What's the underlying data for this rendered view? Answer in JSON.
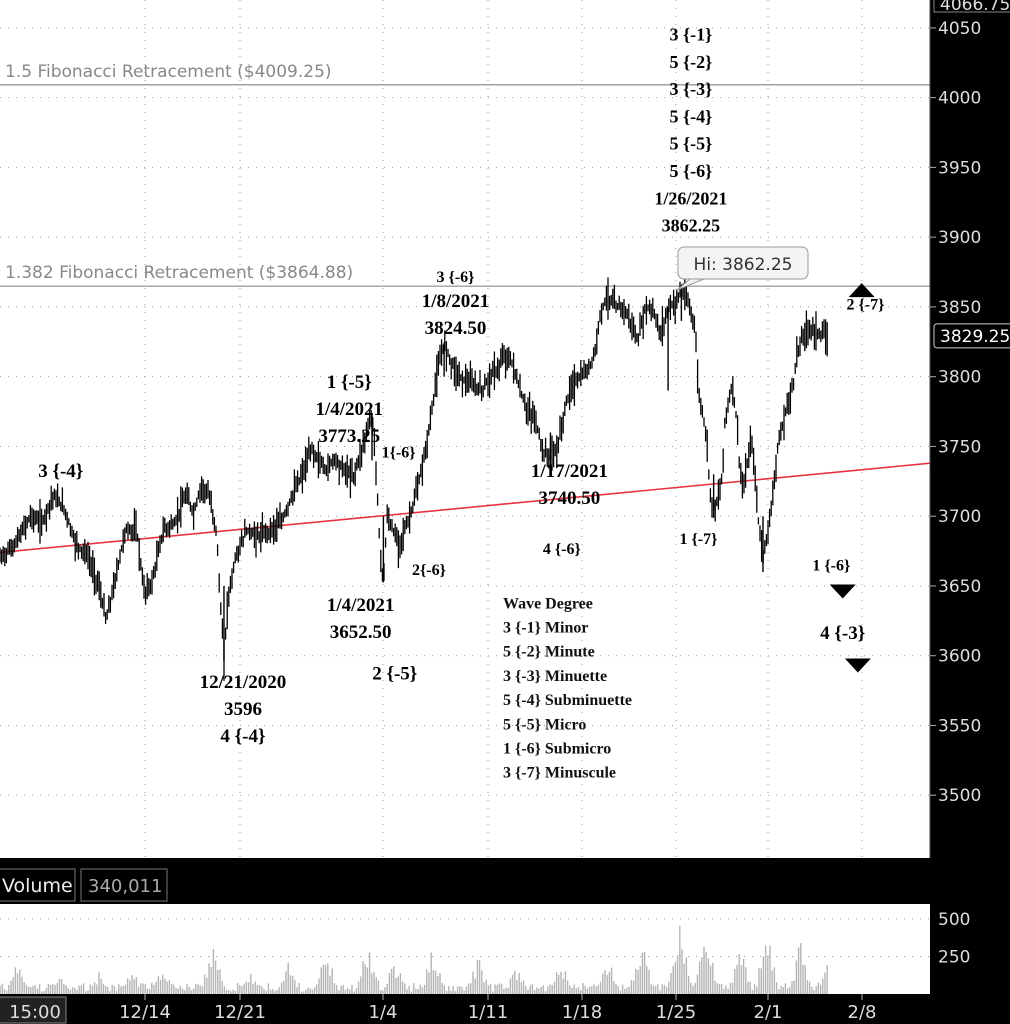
{
  "colors": {
    "background": "#ffffff",
    "frame": "#000000",
    "price_bars": "#000000",
    "trendline": "#e8343f",
    "fib_lines": "#a0a0a0",
    "volume_bars": "#b4b4b4"
  },
  "chart_data": [
    {
      "type": "line",
      "subtype": "ohlc-bar",
      "ylim": [
        3455,
        4070
      ],
      "y_ticks": [
        3500,
        3550,
        3600,
        3650,
        3700,
        3750,
        3800,
        3850,
        3900,
        3950,
        4000,
        4050
      ],
      "top_partial_label": "4066.75",
      "x_ticks": [
        "15:00",
        "12/14",
        "12/21",
        "1/4",
        "1/11",
        "1/18",
        "1/25",
        "2/1",
        "2/8"
      ],
      "grid": true,
      "last_price": "3829.25",
      "high_callout": "Hi: 3862.25",
      "price_series": [
        [
          0,
          3670
        ],
        [
          0.4,
          3680
        ],
        [
          0.8,
          3700
        ],
        [
          1.1,
          3695
        ],
        [
          1.4,
          3715
        ],
        [
          1.7,
          3705
        ],
        [
          2.0,
          3680
        ],
        [
          2.3,
          3672
        ],
        [
          2.6,
          3650
        ],
        [
          2.8,
          3625
        ],
        [
          3.0,
          3650
        ],
        [
          3.3,
          3690
        ],
        [
          3.6,
          3690
        ],
        [
          3.8,
          3645
        ],
        [
          4.0,
          3652
        ],
        [
          4.3,
          3690
        ],
        [
          4.6,
          3695
        ],
        [
          4.9,
          3715
        ],
        [
          5.1,
          3702
        ],
        [
          5.3,
          3722
        ],
        [
          5.5,
          3715
        ],
        [
          5.7,
          3690
        ],
        [
          5.8,
          3640
        ],
        [
          5.9,
          3598
        ],
        [
          6.0,
          3640
        ],
        [
          6.2,
          3670
        ],
        [
          6.5,
          3690
        ],
        [
          6.8,
          3685
        ],
        [
          7.1,
          3690
        ],
        [
          7.4,
          3695
        ],
        [
          7.7,
          3715
        ],
        [
          8.0,
          3732
        ],
        [
          8.2,
          3748
        ],
        [
          8.4,
          3740
        ],
        [
          8.6,
          3733
        ],
        [
          8.8,
          3742
        ],
        [
          9.0,
          3735
        ],
        [
          9.3,
          3728
        ],
        [
          9.5,
          3745
        ],
        [
          9.7,
          3765
        ],
        [
          9.8,
          3773
        ],
        [
          9.9,
          3740
        ],
        [
          10.0,
          3680
        ],
        [
          10.1,
          3652
        ],
        [
          10.2,
          3700
        ],
        [
          10.5,
          3680
        ],
        [
          10.8,
          3700
        ],
        [
          11.0,
          3720
        ],
        [
          11.2,
          3745
        ],
        [
          11.4,
          3780
        ],
        [
          11.5,
          3800
        ],
        [
          11.7,
          3824
        ],
        [
          11.9,
          3810
        ],
        [
          12.1,
          3800
        ],
        [
          12.4,
          3795
        ],
        [
          12.7,
          3790
        ],
        [
          12.9,
          3800
        ],
        [
          13.1,
          3805
        ],
        [
          13.3,
          3815
        ],
        [
          13.5,
          3810
        ],
        [
          13.7,
          3790
        ],
        [
          13.9,
          3775
        ],
        [
          14.1,
          3770
        ],
        [
          14.3,
          3746
        ],
        [
          14.5,
          3741
        ],
        [
          14.7,
          3750
        ],
        [
          14.9,
          3780
        ],
        [
          15.1,
          3795
        ],
        [
          15.3,
          3800
        ],
        [
          15.5,
          3805
        ],
        [
          15.7,
          3820
        ],
        [
          15.8,
          3845
        ],
        [
          16.0,
          3858
        ],
        [
          16.2,
          3850
        ],
        [
          16.4,
          3850
        ],
        [
          16.6,
          3840
        ],
        [
          16.8,
          3825
        ],
        [
          17.0,
          3850
        ],
        [
          17.2,
          3848
        ],
        [
          17.4,
          3830
        ],
        [
          17.6,
          3850
        ],
        [
          17.8,
          3853
        ],
        [
          17.95,
          3862.25
        ],
        [
          18.1,
          3855
        ],
        [
          18.3,
          3838
        ],
        [
          18.4,
          3790
        ],
        [
          18.6,
          3760
        ],
        [
          18.7,
          3720
        ],
        [
          18.8,
          3704
        ],
        [
          19.0,
          3720
        ],
        [
          19.1,
          3770
        ],
        [
          19.3,
          3795
        ],
        [
          19.4,
          3770
        ],
        [
          19.5,
          3730
        ],
        [
          19.6,
          3720
        ],
        [
          19.7,
          3740
        ],
        [
          19.8,
          3755
        ],
        [
          19.9,
          3725
        ],
        [
          20.0,
          3690
        ],
        [
          20.1,
          3672
        ],
        [
          20.3,
          3700
        ],
        [
          20.4,
          3730
        ],
        [
          20.5,
          3750
        ],
        [
          20.7,
          3775
        ],
        [
          20.9,
          3795
        ],
        [
          21.0,
          3818
        ],
        [
          21.2,
          3832
        ],
        [
          21.4,
          3835
        ],
        [
          21.6,
          3830
        ],
        [
          21.8,
          3829
        ]
      ],
      "trendline": [
        [
          0,
          3674
        ],
        [
          24.5,
          3738
        ]
      ],
      "fib_levels": [
        {
          "label": "1.5 Fibonacci  Retracement  ($4009.25)",
          "value": 4009.25
        },
        {
          "label": "1.382 Fibonacci Retracement ($3864.88)",
          "value": 3864.88
        }
      ],
      "annotations": [
        {
          "lines": [
            "3 {-1}",
            "5 {-2}",
            "3 {-3}",
            "5 {-4}",
            "5 {-5}",
            "5 {-6}",
            "1/26/2021",
            "3862.25"
          ],
          "x": 18.2,
          "price": 4041,
          "size": 18,
          "line_step": 27.3
        },
        {
          "lines": [
            "3 {-6}"
          ],
          "x": 12.0,
          "price": 3868,
          "size": 16,
          "line_step": 22
        },
        {
          "lines": [
            "1/8/2021",
            "3824.50"
          ],
          "x": 12.0,
          "price": 3850,
          "size": 19,
          "line_step": 27
        },
        {
          "lines": [
            "1 {-5}",
            "1/4/2021",
            "3773.25"
          ],
          "x": 9.2,
          "price": 3792,
          "size": 19,
          "line_step": 27
        },
        {
          "lines": [
            "3 {-4}"
          ],
          "x": 1.6,
          "price": 3728,
          "size": 19,
          "line_step": 27
        },
        {
          "lines": [
            "1{-6}"
          ],
          "x": 10.5,
          "price": 3742,
          "size": 16,
          "line_step": 22
        },
        {
          "lines": [
            "2{-6}"
          ],
          "x": 11.3,
          "price": 3658,
          "size": 16,
          "line_step": 22
        },
        {
          "lines": [
            "1/4/2021",
            "3652.50"
          ],
          "x": 9.5,
          "price": 3632,
          "size": 19,
          "line_step": 27
        },
        {
          "lines": [
            "2 {-5}"
          ],
          "x": 10.4,
          "price": 3583,
          "size": 19,
          "line_step": 27
        },
        {
          "lines": [
            "12/21/2020",
            "3596",
            "4 {-4}"
          ],
          "x": 6.4,
          "price": 3577,
          "size": 19,
          "line_step": 27
        },
        {
          "lines": [
            "1/17/2021",
            "3740.50"
          ],
          "x": 15.0,
          "price": 3728,
          "size": 19,
          "line_step": 27
        },
        {
          "lines": [
            "4 {-6}"
          ],
          "x": 14.8,
          "price": 3673,
          "size": 16,
          "line_step": 22
        },
        {
          "lines": [
            "1 {-7}"
          ],
          "x": 18.4,
          "price": 3680,
          "size": 16,
          "line_step": 22
        },
        {
          "lines": [
            "2 {-7}"
          ],
          "x": 22.8,
          "price": 3848,
          "size": 16,
          "line_step": 22
        },
        {
          "lines": [
            "1 {-6}"
          ],
          "x": 21.9,
          "price": 3661,
          "size": 16,
          "line_step": 22
        },
        {
          "lines": [
            "4 {-3}"
          ],
          "x": 22.2,
          "price": 3612,
          "size": 19,
          "line_step": 27
        }
      ],
      "markers": [
        {
          "shape": "triangle-up",
          "x": 22.7,
          "price": 3862
        },
        {
          "shape": "triangle-down",
          "x": 22.2,
          "price": 3646
        },
        {
          "shape": "triangle-down",
          "x": 22.6,
          "price": 3593
        }
      ],
      "wave_degree_legend": {
        "x": 13.25,
        "price": 3634,
        "title": "Wave Degree",
        "items": [
          "3 {-1} Minor",
          "5 {-2} Minute",
          "3 {-3} Minuette",
          "5 {-4} Subminuette",
          "5 {-5} Micro",
          "1 {-6} Submicro",
          "3 {-7} Minuscule"
        ]
      }
    },
    {
      "type": "bar",
      "title": "Volume",
      "last_value": "340,011",
      "ylim": [
        0,
        600
      ],
      "y_ticks": [
        250,
        500
      ],
      "x_range": [
        0,
        24.5
      ],
      "values_pattern": "daily session spikes (~150–550) separated by low overnight activity (~10–100)",
      "spike_positions": [
        0.5,
        1.6,
        2.6,
        3.5,
        4.3,
        5.6,
        6.6,
        7.6,
        8.6,
        9.7,
        10.4,
        11.4,
        12.6,
        13.6,
        14.8,
        16.0,
        16.9,
        17.9,
        18.6,
        19.5,
        20.2,
        21.1,
        21.8
      ],
      "spike_values": [
        250,
        120,
        150,
        180,
        220,
        390,
        140,
        220,
        300,
        410,
        260,
        320,
        280,
        200,
        250,
        260,
        400,
        540,
        460,
        360,
        430,
        380,
        250
      ]
    }
  ]
}
